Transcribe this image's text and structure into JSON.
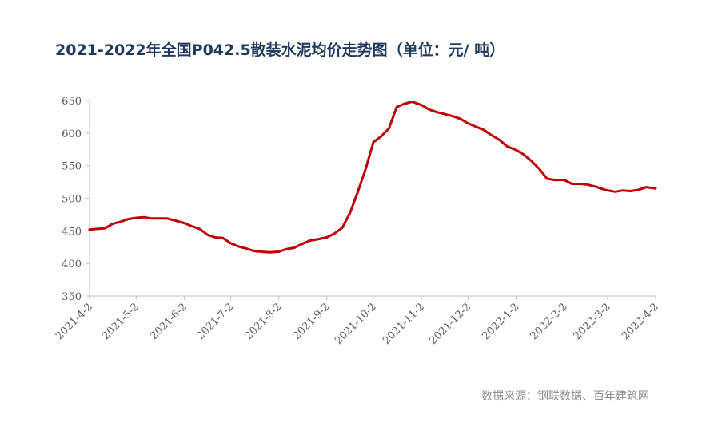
{
  "title": "2021-2022年全国P042.5散装水泥均价走势图（单位：元/ 吨）",
  "source": "数据来源：钢联数据、百年建筑网",
  "colors": {
    "line": "#c00000",
    "axis": "#bfbfbf",
    "title": "#1f3a5f"
  },
  "chart_data": {
    "type": "line",
    "title": "2021-2022年全国P042.5散装水泥均价走势图（单位：元/ 吨）",
    "xlabel": "",
    "ylabel": "",
    "ylim": [
      350,
      650
    ],
    "yticks": [
      350,
      400,
      450,
      500,
      550,
      600,
      650
    ],
    "xlim": [
      "2021-4-2",
      "2022-4-2"
    ],
    "xticks": [
      "2021-4-2",
      "2021-5-2",
      "2021-6-2",
      "2021-7-2",
      "2021-8-2",
      "2021-9-2",
      "2021-10-2",
      "2021-11-2",
      "2021-12-2",
      "2022-1-2",
      "2022-2-2",
      "2022-3-2",
      "2022-4-2"
    ],
    "grid": false,
    "legend": "none",
    "series": [
      {
        "x": [
          "2021-4-2",
          "2021-4-7",
          "2021-4-12",
          "2021-4-17",
          "2021-4-22",
          "2021-4-27",
          "2021-5-2",
          "2021-5-7",
          "2021-5-12",
          "2021-5-17",
          "2021-5-22",
          "2021-5-27",
          "2021-6-2",
          "2021-6-7",
          "2021-6-12",
          "2021-6-17",
          "2021-6-22",
          "2021-6-27",
          "2021-7-2",
          "2021-7-7",
          "2021-7-12",
          "2021-7-17",
          "2021-7-22",
          "2021-7-27",
          "2021-8-2",
          "2021-8-7",
          "2021-8-12",
          "2021-8-17",
          "2021-8-22",
          "2021-8-27",
          "2021-9-2",
          "2021-9-7",
          "2021-9-12",
          "2021-9-17",
          "2021-9-22",
          "2021-9-27",
          "2021-10-2",
          "2021-10-7",
          "2021-10-12",
          "2021-10-17",
          "2021-10-22",
          "2021-10-27",
          "2021-11-2",
          "2021-11-7",
          "2021-11-12",
          "2021-11-17",
          "2021-11-22",
          "2021-11-27",
          "2021-12-2",
          "2021-12-7",
          "2021-12-12",
          "2021-12-17",
          "2021-12-22",
          "2021-12-27",
          "2022-1-2",
          "2022-1-7",
          "2022-1-12",
          "2022-1-17",
          "2022-1-22",
          "2022-1-27",
          "2022-2-2",
          "2022-2-7",
          "2022-2-12",
          "2022-2-17",
          "2022-2-22",
          "2022-2-27",
          "2022-3-2",
          "2022-3-7",
          "2022-3-12",
          "2022-3-17",
          "2022-3-22",
          "2022-3-27",
          "2022-4-2"
        ],
        "values": [
          452,
          453,
          454,
          461,
          464,
          468,
          470,
          471,
          469,
          469,
          469,
          466,
          462,
          457,
          453,
          444,
          440,
          439,
          431,
          426,
          423,
          419,
          418,
          417,
          418,
          422,
          424,
          430,
          435,
          437,
          440,
          446,
          455,
          478,
          510,
          545,
          586,
          595,
          607,
          640,
          645,
          648,
          643,
          636,
          632,
          629,
          626,
          622,
          615,
          610,
          605,
          597,
          590,
          580,
          574,
          567,
          557,
          545,
          530,
          528,
          528,
          522,
          522,
          521,
          518,
          514,
          512,
          510,
          512,
          511,
          513,
          517,
          515
        ]
      }
    ]
  }
}
